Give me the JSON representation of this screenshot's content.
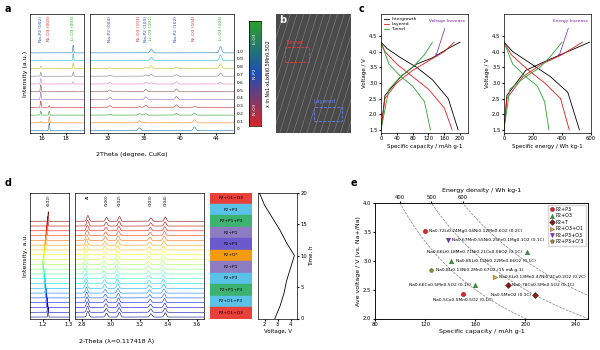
{
  "chart_data": [
    {
      "panel": "a",
      "type": "line",
      "xlabel": "2Theta (degree, CuKα)",
      "ylabel": "Intensity (a.u.)",
      "ylim": [
        -0.3,
        15
      ],
      "tick_labels": "x",
      "segments": [
        {
          "xlim": [
            15,
            19.5
          ],
          "xticks": [
            16,
            18
          ]
        },
        {
          "xlim": [
            30,
            46
          ],
          "xticks": [
            32,
            36,
            40,
            44
          ]
        }
      ],
      "x_values": [
        0,
        0.1,
        0.2,
        0.3,
        0.4,
        0.5,
        0.6,
        0.7,
        0.8,
        0.9,
        1.0
      ],
      "colorbar_label": "x in Na1-xLixNi0.5Mn0.5O2",
      "phases": [
        {
          "name": "Ni-O3",
          "color": "#d62728",
          "fractions": [
            1,
            0.8,
            0.5,
            0.2,
            0,
            0,
            0,
            0,
            0,
            0,
            0
          ],
          "peaks": [
            {
              "x": 16.6,
              "height": 1.0,
              "label": "Ni-O3 (003)"
            },
            {
              "x": 35.5,
              "height": 0.35,
              "label": "Ni-O3 (101)"
            },
            {
              "x": 41.6,
              "height": 0.5,
              "label": "Ni-O3 (104)"
            }
          ]
        },
        {
          "name": "Ni-P2",
          "color": "#1f4eb4",
          "fractions": [
            0,
            0.2,
            0.5,
            0.8,
            1,
            0.9,
            0.7,
            0.5,
            0.3,
            0.1,
            0
          ],
          "peaks": [
            {
              "x": 15.9,
              "height": 1.0,
              "label": "Na-P2 (002)"
            },
            {
              "x": 32.2,
              "height": 0.25,
              "label": "Na-P2 (004)"
            },
            {
              "x": 36.2,
              "height": 0.35,
              "label": "Na-P2 (100)"
            },
            {
              "x": 39.6,
              "height": 0.4,
              "label": "Na-P2 (102)"
            }
          ]
        },
        {
          "name": "Li-O3",
          "color": "#2ca02c",
          "fractions": [
            0,
            0,
            0,
            0,
            0,
            0.1,
            0.3,
            0.5,
            0.7,
            0.9,
            1
          ],
          "peaks": [
            {
              "x": 18.6,
              "height": 1.0,
              "label": "Li-O3 (003)"
            },
            {
              "x": 36.8,
              "height": 0.5,
              "label": "Li-O3 (101)"
            },
            {
              "x": 44.5,
              "height": 0.8,
              "label": "Li-O3 (104)"
            }
          ]
        }
      ]
    },
    {
      "panel": "b",
      "type": "image",
      "annotations": [
        {
          "text": "Tunnel",
          "color": "#ff3030"
        },
        {
          "text": "Layered",
          "color": "#6080ff"
        }
      ]
    },
    {
      "panel": "c",
      "type": "line",
      "subplots": [
        {
          "xlabel": "Specific capacity / mAh g-1",
          "ylabel": "Voltage / V",
          "xlim": [
            0,
            220
          ],
          "xticks": [
            0,
            40,
            80,
            120,
            160,
            200
          ],
          "ylim": [
            1.4,
            5.2
          ],
          "yticks": [
            1.5,
            2.0,
            2.5,
            3.0,
            3.5,
            4.0,
            4.5
          ],
          "legend": "upper left",
          "annotation": "Voltage Increase",
          "series": [
            {
              "name": "Intergrowth",
              "color": "#000000",
              "x": [
                0,
                10,
                50,
                90,
                130,
                170,
                200,
                null,
                0,
                15,
                50,
                90,
                130,
                170,
                195
              ],
              "values": [
                1.5,
                2.6,
                3.2,
                3.6,
                3.8,
                4.1,
                4.3,
                null,
                4.3,
                4.1,
                3.8,
                3.5,
                3.1,
                2.5,
                1.5
              ]
            },
            {
              "name": "Layered",
              "color": "#e41a1c",
              "x": [
                0,
                10,
                40,
                80,
                120,
                160,
                185,
                null,
                0,
                10,
                40,
                80,
                120,
                160,
                180
              ],
              "values": [
                1.5,
                2.5,
                3.0,
                3.4,
                3.7,
                4.0,
                4.3,
                null,
                4.3,
                4.0,
                3.6,
                3.2,
                2.8,
                2.2,
                1.5
              ]
            },
            {
              "name": "Tunnel",
              "color": "#2ca02c",
              "x": [
                0,
                20,
                50,
                80,
                110,
                130,
                null,
                0,
                20,
                50,
                80,
                110,
                125
              ],
              "values": [
                1.5,
                2.8,
                3.2,
                3.5,
                3.9,
                4.3,
                null,
                4.3,
                3.6,
                3.2,
                2.9,
                2.4,
                1.5
              ]
            }
          ]
        },
        {
          "xlabel": "Specific energy / Wh kg-1",
          "ylabel": "Voltage / V",
          "xlim": [
            0,
            600
          ],
          "xticks": [
            0,
            200,
            400,
            600
          ],
          "ylim": [
            1.4,
            5.2
          ],
          "yticks": [
            1.5,
            2.0,
            2.5,
            3.0,
            3.5,
            4.0,
            4.5
          ],
          "annotation": "Energy Increase",
          "series": [
            {
              "color": "#000000",
              "x": [
                0,
                20,
                150,
                290,
                440,
                590,
                null,
                0,
                60,
                190,
                320,
                440,
                520
              ],
              "values": [
                1.5,
                2.6,
                3.4,
                3.7,
                4.0,
                4.3,
                null,
                4.3,
                4.0,
                3.6,
                3.2,
                2.7,
                1.5
              ]
            },
            {
              "color": "#e41a1c",
              "x": [
                0,
                20,
                130,
                260,
                400,
                540,
                null,
                0,
                50,
                170,
                280,
                390,
                450
              ],
              "values": [
                1.5,
                2.5,
                3.2,
                3.6,
                3.9,
                4.3,
                null,
                4.3,
                3.9,
                3.4,
                3.0,
                2.5,
                1.5
              ]
            },
            {
              "color": "#2ca02c",
              "x": [
                0,
                40,
                150,
                250,
                330,
                400,
                null,
                0,
                60,
                150,
                230,
                280,
                310
              ],
              "values": [
                1.5,
                2.8,
                3.2,
                3.5,
                3.9,
                4.3,
                null,
                4.3,
                3.6,
                3.2,
                2.9,
                2.4,
                1.5
              ]
            }
          ]
        }
      ]
    },
    {
      "panel": "d",
      "type": "line",
      "xlabel": "2-Theta (λ=0.117418 Å)",
      "ylabel": "Intensity, a.u.",
      "ylim": [
        -0.3,
        26
      ],
      "tick_labels": "x",
      "segments": [
        {
          "xlim": [
            1.15,
            1.3
          ],
          "xticks": [
            1.2,
            1.3
          ]
        },
        {
          "xlim": [
            2.75,
            3.65
          ],
          "xticks": [
            2.8,
            3.0,
            3.2,
            3.4,
            3.6
          ]
        }
      ],
      "peaks": [
        {
          "x": 1.22,
          "height": 2.0,
          "label": "(002)"
        },
        {
          "x": 2.84,
          "height": 1.2,
          "label": "Al"
        },
        {
          "x": 2.97,
          "height": 0.8,
          "label": "(100)"
        },
        {
          "x": 3.06,
          "height": 1.0,
          "label": "(102)"
        },
        {
          "x": 3.28,
          "height": 0.7,
          "label": "(103)"
        },
        {
          "x": 3.38,
          "height": 0.9,
          "label": "(104)"
        }
      ],
      "shift": [
        0,
        -0.002,
        -0.004,
        -0.006,
        -0.008,
        -0.01,
        -0.012,
        -0.014,
        -0.016,
        -0.018,
        -0.02,
        -0.018,
        -0.016,
        -0.014,
        -0.012,
        -0.01,
        -0.008,
        -0.006,
        -0.004,
        -0.002,
        0
      ],
      "phase_labels": [
        "P2+O1+O3",
        "P2+P3",
        "P2+P1+P3",
        "P2+P1",
        "P2+P3",
        "P2+O*",
        "P2+P1",
        "P2+P3",
        "P2+P1+P3",
        "P2+O1+P3",
        "P2+O1+O3"
      ],
      "colors": [
        "#e8403a",
        "#5bc2e7",
        "#3cb371",
        "#8e7cc3",
        "#6a5acd",
        "#f39c12",
        "#8e7cc3",
        "#5bc2e7",
        "#3cb371",
        "#5bc2e7",
        "#e8403a"
      ],
      "voltage": {
        "xlabel": "Voltage, V",
        "ylabel": "Time, h",
        "xlim": [
          1.5,
          4.5
        ],
        "xticks": [
          2,
          3,
          4
        ],
        "ylim": [
          0,
          20
        ],
        "yticks": [
          0,
          5,
          10,
          15,
          20
        ],
        "x": [
          2.8,
          3.2,
          3.5,
          3.7,
          4.0,
          4.3,
          3.7,
          3.2,
          2.6,
          2.0,
          1.6
        ],
        "values": [
          0,
          2,
          4,
          6,
          8,
          10,
          12,
          14,
          16,
          18,
          20
        ]
      }
    },
    {
      "panel": "e",
      "type": "scatter",
      "xlabel": "Specific capacity / mAh g-1",
      "ylabel": "Ave voltage / V (vs. Na+/Na)",
      "x2label": "Energy density / Wh kg-1",
      "xlim": [
        80,
        250
      ],
      "xticks": [
        80,
        120,
        160,
        200,
        240
      ],
      "ylim": [
        2.0,
        4.0
      ],
      "yticks": [
        2.0,
        2.5,
        3.0,
        3.5,
        4.0
      ],
      "energy_lines": [
        400,
        500,
        600
      ],
      "legend": "upper right",
      "series": [
        {
          "name": "P2+P3",
          "color": "#e8201c",
          "marker": "circle",
          "x": [
            120,
            150
          ],
          "values": [
            3.52,
            2.42
          ],
          "labels": [
            "Na0.72Li0.24Mg0.04Ni0.12Mn0.6O2 (0.2C)",
            "Na0.5Co0.5Mn0.5O2 (0.1C)"
          ]
        },
        {
          "name": "P2+O3",
          "color": "#2e9e2e",
          "marker": "triangle_up",
          "x": [
            201,
            141,
            160
          ],
          "values": [
            3.16,
            3.0,
            2.58
          ],
          "labels": [
            "Na0.66Li0.18Mn0.71Ni0.21Co0.08O2 (0.1C)",
            "Na0.85Li0.12Ni0.22Mn0.66O2 (0.1C)",
            "Na0.66Co0.5Mn0.5O2 (0.1C)"
          ]
        },
        {
          "name": "P2+T",
          "color": "#8b1a1a",
          "marker": "diamond",
          "x": [
            186,
            208
          ],
          "values": [
            2.58,
            2.4
          ],
          "labels": [
            "Na0.78Co0.5Mn0.5O2 (0.1C)",
            "Na0.5MnO2 (0.1C)"
          ]
        },
        {
          "name": "P2+O3+O1",
          "color": "#f5a623",
          "marker": "triangle_right",
          "x": [
            176
          ],
          "values": [
            2.72
          ],
          "labels": [
            "Na0.6Li0.13Mn0.47Ni0.2Co0.2O2 (0.2C)"
          ]
        },
        {
          "name": "P2+P3+O3",
          "color": "#8a2be2",
          "marker": "triangle_down",
          "x": [
            138
          ],
          "values": [
            3.36
          ],
          "labels": [
            "Na0.67Mn0.55Ni0.25Fe0.1Mg0.1O2 (0.1C)"
          ]
        },
        {
          "name": "P2+P3+O'3",
          "color": "#8f8f2a",
          "marker": "pentagon",
          "x": [
            125
          ],
          "values": [
            2.84
          ],
          "labels": [
            "Na0.8Li0.13Ni0.2Mn0.67O2 (15 mA g-1)"
          ]
        }
      ]
    }
  ]
}
